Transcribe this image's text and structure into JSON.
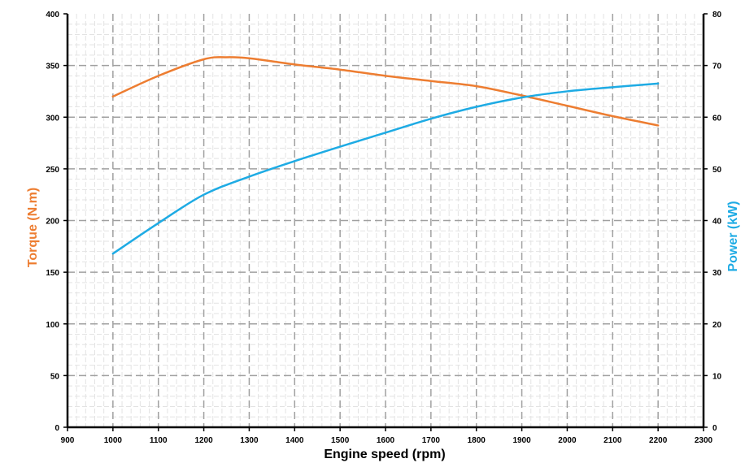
{
  "chart_data": {
    "type": "line",
    "xlabel": "Engine speed (rpm)",
    "ylabel_left": "Torque (N.m)",
    "ylabel_right": "Power (kW)",
    "xlim": [
      900,
      2300
    ],
    "ylim_left": [
      0,
      400
    ],
    "ylim_right": [
      0,
      80
    ],
    "x_ticks": [
      900,
      1000,
      1100,
      1200,
      1300,
      1400,
      1500,
      1600,
      1700,
      1800,
      1900,
      2000,
      2100,
      2200,
      2300
    ],
    "y_left_ticks": [
      0,
      50,
      100,
      150,
      200,
      250,
      300,
      350,
      400
    ],
    "y_right_ticks": [
      0,
      10,
      20,
      30,
      40,
      50,
      60,
      70,
      80
    ],
    "grid": true,
    "series": [
      {
        "axis": "left",
        "color": "#ED7D31",
        "x": [
          1000,
          1100,
          1200,
          1250,
          1300,
          1400,
          1500,
          1600,
          1700,
          1800,
          1900,
          2000,
          2100,
          2200
        ],
        "values": [
          320,
          340,
          356,
          358,
          357,
          351,
          346,
          340,
          335,
          330,
          321,
          311,
          301,
          292
        ]
      },
      {
        "axis": "right",
        "color": "#1EABE4",
        "x": [
          1000,
          1100,
          1200,
          1300,
          1400,
          1500,
          1600,
          1700,
          1800,
          1900,
          2000,
          2100,
          2200
        ],
        "values": [
          33.6,
          39.5,
          45,
          48.5,
          51.5,
          54.3,
          57,
          59.7,
          62,
          63.8,
          65,
          65.8,
          66.5
        ]
      }
    ]
  }
}
